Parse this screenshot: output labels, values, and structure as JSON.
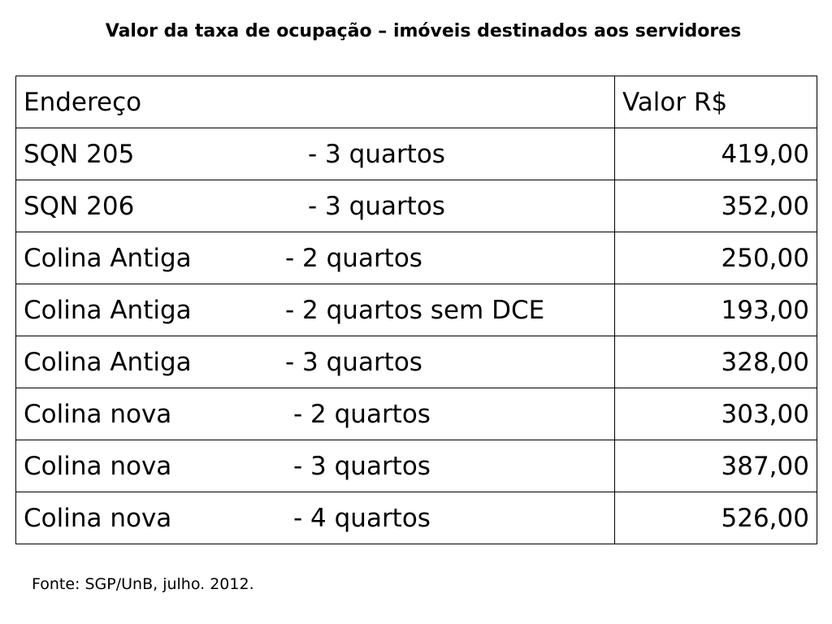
{
  "title": "Valor da taxa de ocupação – imóveis destinados aos servidores",
  "table": {
    "headers": {
      "address": "Endereço",
      "value": "Valor R$"
    },
    "rows": [
      {
        "place": "SQN 205",
        "type": "-  3 quartos",
        "value": "419,00"
      },
      {
        "place": "SQN 206",
        "type": "-  3 quartos",
        "value": "352,00"
      },
      {
        "place": "Colina Antiga",
        "type": "-  2 quartos",
        "value": "250,00"
      },
      {
        "place": "Colina Antiga",
        "type": "-  2 quartos sem DCE",
        "value": "193,00"
      },
      {
        "place": "Colina Antiga",
        "type": "-  3 quartos",
        "value": "328,00"
      },
      {
        "place": "Colina nova",
        "type": "-  2 quartos",
        "value": "303,00"
      },
      {
        "place": "Colina nova",
        "type": "-  3 quartos",
        "value": "387,00"
      },
      {
        "place": "Colina nova",
        "type": "-  4 quartos",
        "value": "526,00"
      }
    ]
  },
  "source": "Fonte: SGP/UnB, julho. 2012."
}
